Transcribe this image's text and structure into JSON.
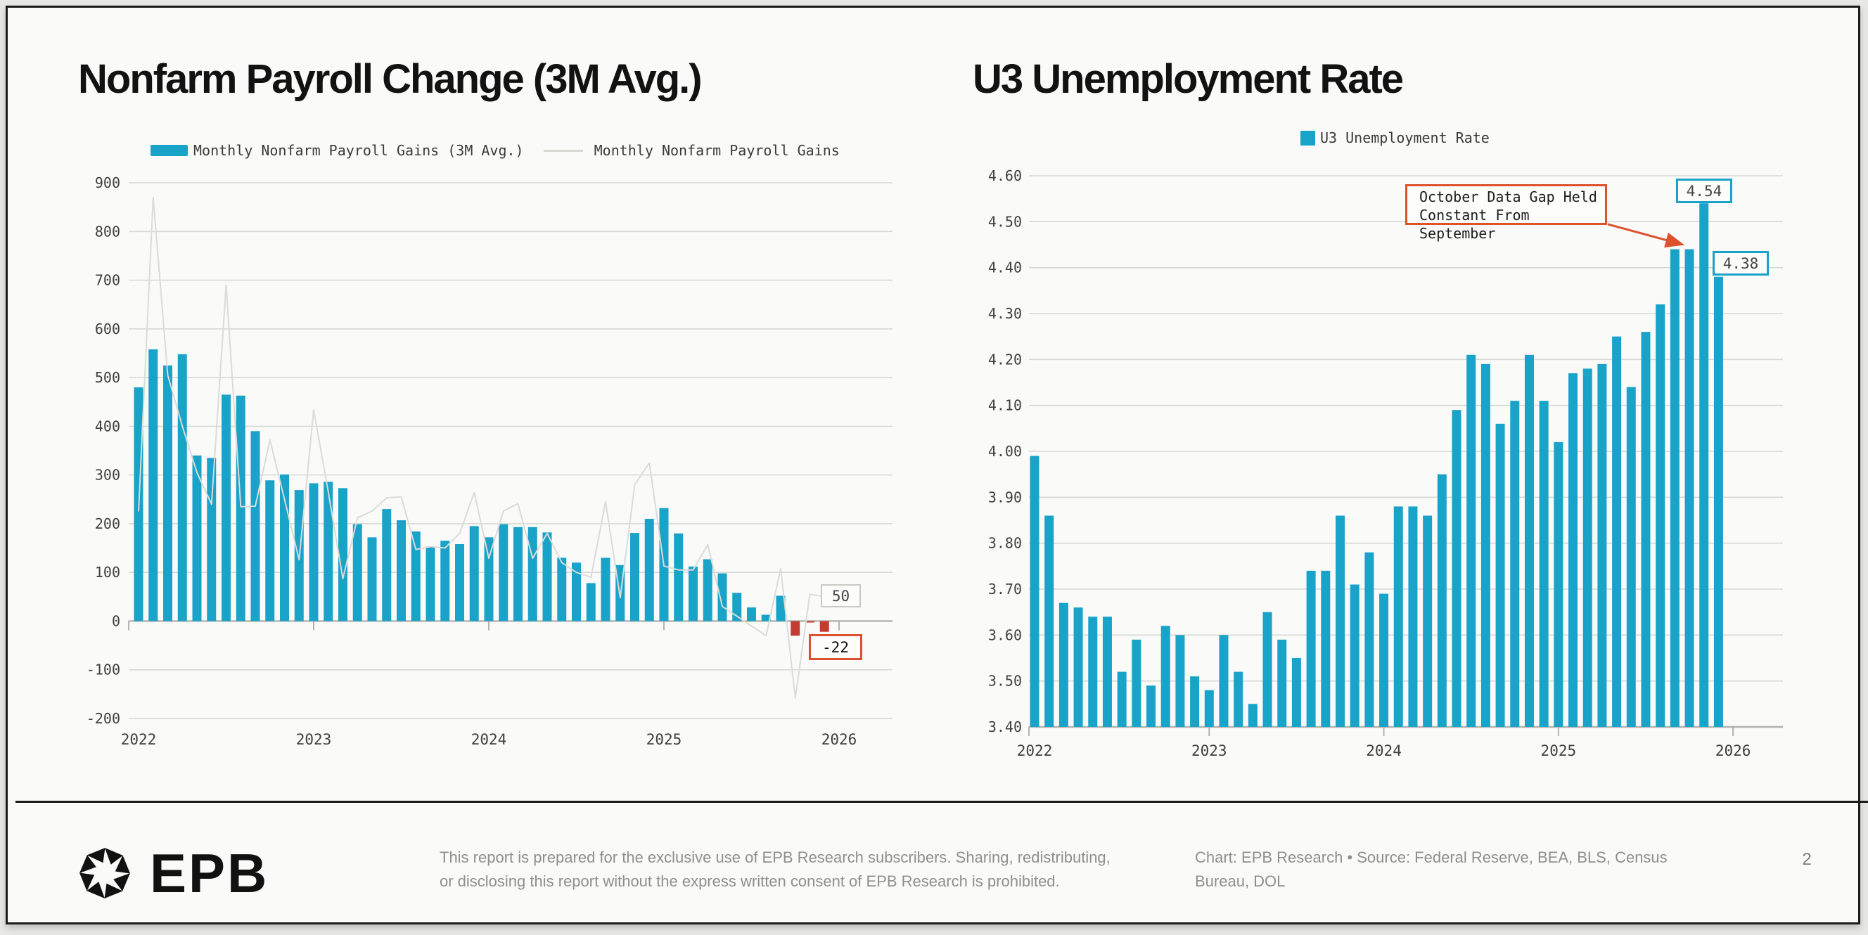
{
  "page": {
    "background": "#FAFAF8",
    "frame_color": "#1b1b1b",
    "page_number": "2"
  },
  "colors": {
    "accent_cyan": "#1AA3C9",
    "negative_red": "#C43B32",
    "annotation_orange": "#DD512E",
    "line_gray": "#DBDBD7",
    "gridline": "#D8D8D4",
    "axis_zero_line": "#B2B2AE",
    "axis_text": "#3F3F3D"
  },
  "chart_data": [
    {
      "type": "bar",
      "title": "Nonfarm Payroll Change (3M Avg.)",
      "x_unit": "month",
      "x_start": "2022-01",
      "x_tick_labels": [
        "2022",
        "2023",
        "2024",
        "2025",
        "2026"
      ],
      "ylim": [
        -200,
        900
      ],
      "y_tick_step": 100,
      "y_tick_labels": [
        "900",
        "800",
        "700",
        "600",
        "500",
        "400",
        "300",
        "200",
        "100",
        "0",
        "-100",
        "-200"
      ],
      "grid": true,
      "legend_position": "top",
      "series": [
        {
          "name": "Monthly Nonfarm Payroll Gains (3M Avg.)",
          "type": "bar",
          "color": "#1AA3C9",
          "negative_color": "#C43B32",
          "values": [
            480,
            558,
            525,
            548,
            340,
            335,
            465,
            463,
            390,
            289,
            301,
            269,
            283,
            286,
            273,
            199,
            172,
            230,
            207,
            184,
            153,
            165,
            158,
            195,
            172,
            199,
            193,
            193,
            182,
            130,
            120,
            78,
            130,
            115,
            181,
            210,
            232,
            180,
            112,
            127,
            98,
            58,
            28,
            13,
            52,
            -30,
            -3,
            -22
          ]
        },
        {
          "name": "Monthly Nonfarm Payroll Gains",
          "type": "line",
          "color": "#DBDBD7",
          "values": [
            225,
            870,
            505,
            400,
            305,
            240,
            690,
            235,
            236,
            372,
            250,
            126,
            434,
            265,
            87,
            212,
            226,
            253,
            255,
            147,
            153,
            150,
            180,
            264,
            129,
            226,
            241,
            129,
            180,
            120,
            100,
            90,
            245,
            48,
            280,
            325,
            113,
            105,
            105,
            157,
            30,
            10,
            -10,
            -30,
            108,
            -158,
            55,
            50
          ]
        }
      ],
      "annotations": [
        {
          "text": "50",
          "target_series": "Monthly Nonfarm Payroll Gains",
          "month_index": 47,
          "box_border": "#C9C9C5"
        },
        {
          "text": "-22",
          "target_series": "Monthly Nonfarm Payroll Gains (3M Avg.)",
          "month_index": 47,
          "box_border": "#DD512E"
        }
      ]
    },
    {
      "type": "bar",
      "title": "U3 Unemployment Rate",
      "x_unit": "month",
      "x_start": "2022-01",
      "x_tick_labels": [
        "2022",
        "2023",
        "2024",
        "2025",
        "2026"
      ],
      "ylim": [
        3.4,
        4.6
      ],
      "y_tick_step": 0.1,
      "y_tick_labels": [
        "4.60",
        "4.50",
        "4.40",
        "4.30",
        "4.20",
        "4.10",
        "4.00",
        "3.90",
        "3.80",
        "3.70",
        "3.60",
        "3.50",
        "3.40"
      ],
      "grid": true,
      "legend_position": "top",
      "series": [
        {
          "name": "U3 Unemployment Rate",
          "type": "bar",
          "color": "#1AA3C9",
          "values": [
            3.99,
            3.86,
            3.67,
            3.66,
            3.64,
            3.64,
            3.52,
            3.59,
            3.49,
            3.62,
            3.6,
            3.51,
            3.48,
            3.6,
            3.52,
            3.45,
            3.65,
            3.59,
            3.55,
            3.74,
            3.74,
            3.86,
            3.71,
            3.78,
            3.69,
            3.88,
            3.88,
            3.86,
            3.95,
            4.09,
            4.21,
            4.19,
            4.06,
            4.11,
            4.21,
            4.11,
            4.02,
            4.17,
            4.18,
            4.19,
            4.25,
            4.14,
            4.26,
            4.32,
            4.44,
            4.44,
            4.54,
            4.38
          ]
        }
      ],
      "annotations": [
        {
          "text": "4.54",
          "month_index": 46,
          "box_border": "#1AA3C9"
        },
        {
          "text": "4.38",
          "month_index": 47,
          "box_border": "#1AA3C9"
        },
        {
          "text": "October Data Gap Held\nConstant From September",
          "type": "callout",
          "box_border": "#DD512E",
          "arrow_to_month_index": 45
        }
      ]
    }
  ],
  "footer": {
    "logo_text": "EPB",
    "disclaimer_line1": "This report is prepared for the exclusive use of EPB Research subscribers. Sharing, redistributing,",
    "disclaimer_line2": "or disclosing this report without the express written consent of EPB Research is prohibited.",
    "credit_line1": "Chart: EPB Research  •  Source: Federal Reserve, BEA, BLS, Census",
    "credit_line2": "Bureau, DOL",
    "page_number": "2"
  }
}
